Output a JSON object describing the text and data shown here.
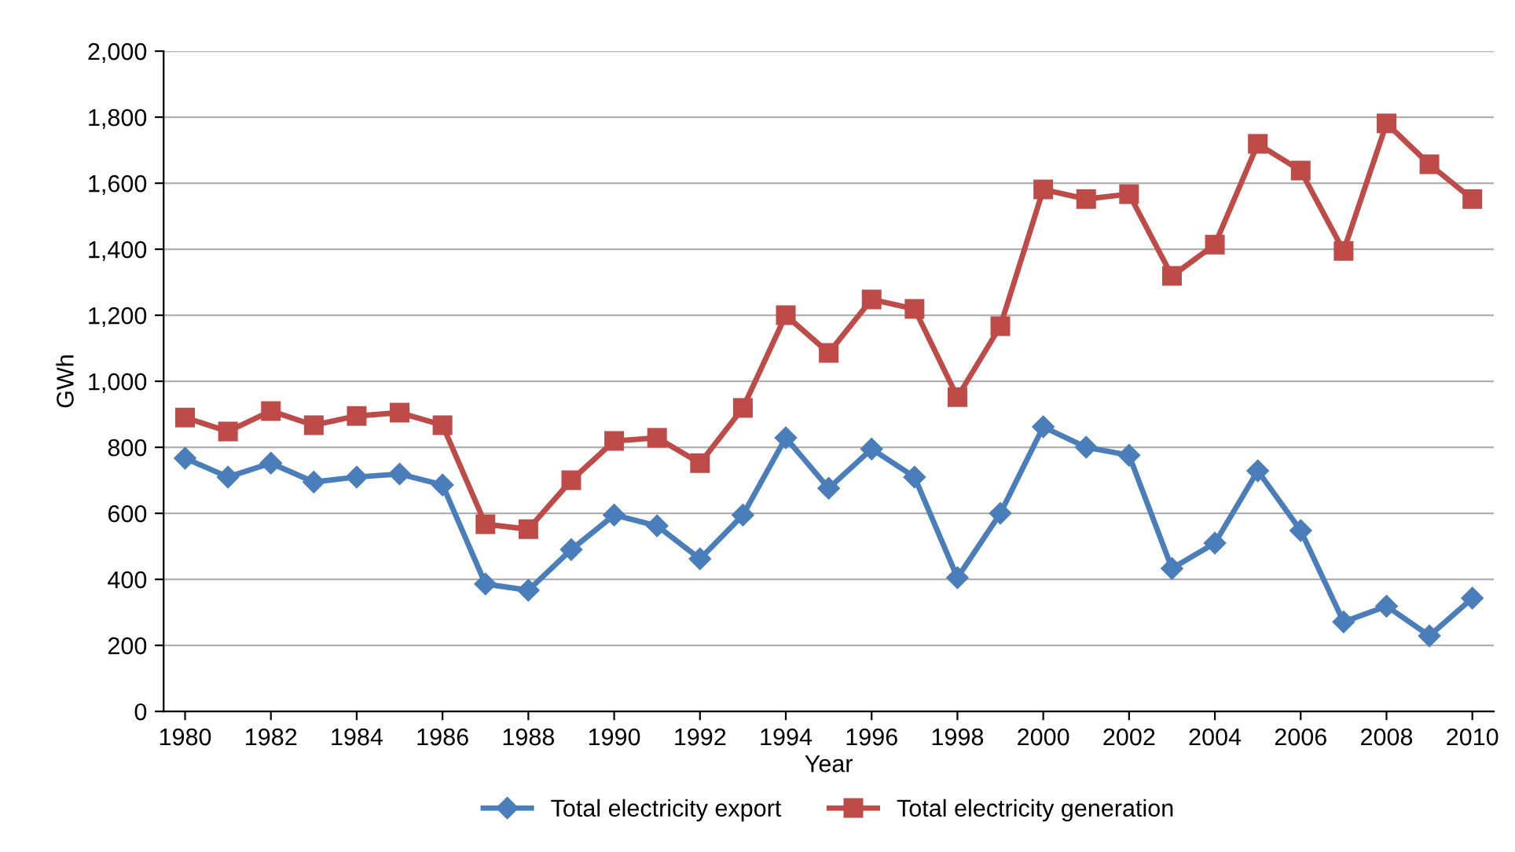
{
  "chart_data": {
    "type": "line",
    "xlabel": "Year",
    "ylabel": "GWh",
    "x": [
      1980,
      1981,
      1982,
      1983,
      1984,
      1985,
      1986,
      1987,
      1988,
      1989,
      1990,
      1991,
      1992,
      1993,
      1994,
      1995,
      1996,
      1997,
      1998,
      1999,
      2000,
      2001,
      2002,
      2003,
      2004,
      2005,
      2006,
      2007,
      2008,
      2009,
      2010
    ],
    "series": [
      {
        "name": "Total electricity export",
        "color": "#4a7ebb",
        "marker": "diamond",
        "values": [
          767,
          710,
          752,
          695,
          710,
          719,
          686,
          386,
          367,
          490,
          595,
          562,
          462,
          595,
          829,
          676,
          795,
          710,
          405,
          600,
          862,
          800,
          776,
          433,
          510,
          729,
          548,
          271,
          319,
          229,
          343
        ]
      },
      {
        "name": "Total electricity generation",
        "color": "#be4b48",
        "marker": "square",
        "values": [
          890,
          848,
          910,
          867,
          895,
          905,
          867,
          567,
          552,
          700,
          819,
          829,
          752,
          919,
          1200,
          1086,
          1248,
          1219,
          952,
          1167,
          1581,
          1552,
          1567,
          1319,
          1414,
          1719,
          1638,
          1395,
          1781,
          1657,
          1552
        ]
      }
    ],
    "xlim": [
      1979.5,
      2010.5
    ],
    "xticks": [
      1980,
      1982,
      1984,
      1986,
      1988,
      1990,
      1992,
      1994,
      1996,
      1998,
      2000,
      2002,
      2004,
      2006,
      2008,
      2010
    ],
    "ylim": [
      0,
      2000
    ],
    "yticks": [
      {
        "value": 0,
        "label": "0"
      },
      {
        "value": 200,
        "label": "200"
      },
      {
        "value": 400,
        "label": "400"
      },
      {
        "value": 600,
        "label": "600"
      },
      {
        "value": 800,
        "label": "800"
      },
      {
        "value": 1000,
        "label": "1,000"
      },
      {
        "value": 1200,
        "label": "1,200"
      },
      {
        "value": 1400,
        "label": "1,400"
      },
      {
        "value": 1600,
        "label": "1,600"
      },
      {
        "value": 1800,
        "label": "1,800"
      },
      {
        "value": 2000,
        "label": "2,000"
      }
    ],
    "grid": "y",
    "legend": "bottom",
    "line_style": "solid"
  }
}
